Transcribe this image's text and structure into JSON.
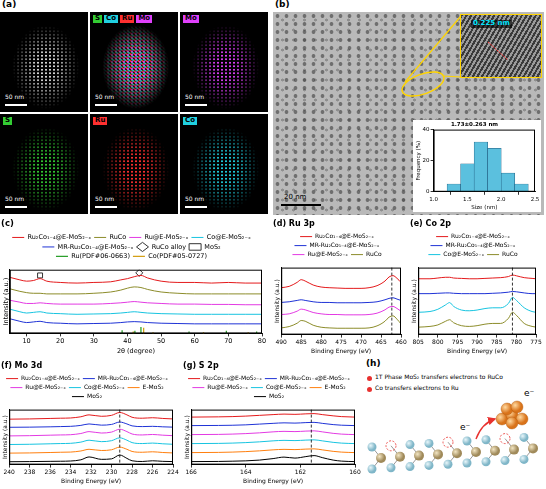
{
  "chart_data": [
    {
      "type": "line",
      "panel_label": "(c)",
      "x_label": "2θ (degree)",
      "y_label": "Intensity (a.u.)",
      "x": [
        5,
        8,
        10,
        12,
        14,
        16,
        20,
        25,
        30,
        35,
        38,
        40,
        42,
        44,
        46,
        50,
        55,
        60,
        65,
        70,
        75,
        80
      ],
      "series": [
        {
          "name": "Ru₂Co₁₋₄@E-MoS₂₋ₓ",
          "color": "#e41a1c",
          "values": [
            88,
            84,
            82,
            83,
            86,
            82,
            80,
            79,
            80,
            81,
            84,
            86,
            89,
            91,
            87,
            82,
            80,
            80,
            79,
            80,
            79,
            79
          ]
        },
        {
          "name": "RuCo",
          "color": "#8c8c2a",
          "values": [
            70,
            66,
            64,
            63,
            63,
            62,
            62,
            62,
            63,
            65,
            68,
            71,
            73,
            72,
            69,
            65,
            63,
            62,
            62,
            62,
            62,
            62
          ]
        },
        {
          "name": "Ru@E-MoS₂₋ₓ",
          "color": "#e33ae3",
          "values": [
            52,
            49,
            47,
            47,
            48,
            47,
            46,
            46,
            46,
            47,
            48,
            49,
            50,
            49,
            48,
            47,
            46,
            46,
            45.5,
            45.5,
            45,
            45
          ]
        },
        {
          "name": "Co@E-MoS₂₋ₓ",
          "color": "#17c4e0",
          "values": [
            38,
            34,
            32,
            33,
            34,
            32,
            31,
            30,
            30.5,
            31,
            32,
            33,
            34,
            33,
            32,
            31,
            30.5,
            30,
            30,
            30,
            30,
            30
          ]
        },
        {
          "name": "MR-Ru₂Co₁₋₄@E-MoS₂₋ₓ",
          "color": "#1f33d6",
          "values": [
            23,
            19,
            17,
            18,
            19,
            17,
            16,
            15,
            15.5,
            16,
            17,
            18,
            18.5,
            18,
            17,
            16,
            15.5,
            15,
            15,
            15,
            15,
            15
          ]
        }
      ],
      "markers": [
        {
          "name": "RuCo alloy",
          "marker": "diamond",
          "color": "#333333",
          "x": [
            43.5
          ],
          "values": [
            95
          ]
        },
        {
          "name": "MoS₂",
          "marker": "square",
          "color": "#333333",
          "x": [
            14
          ],
          "values": [
            91
          ]
        }
      ],
      "references": [
        {
          "name": "Ru(PDF#06-0663)",
          "color": "#2ca02c",
          "x": [
            38.4,
            42.2,
            44.0,
            58.3,
            69.4,
            78.4
          ],
          "values": [
            5,
            4,
            10,
            3,
            4,
            3
          ]
        },
        {
          "name": "Co(PDF#05-0727)",
          "color": "#d4a017",
          "x": [
            41.7,
            44.8,
            47.6,
            62.6,
            75.9
          ],
          "values": [
            3,
            9,
            2,
            2,
            2
          ]
        }
      ],
      "xlim": [
        5,
        80
      ],
      "xticks": [
        10,
        20,
        30,
        40,
        50,
        60,
        70,
        80
      ],
      "ylim": [
        0,
        100
      ],
      "legend": "top",
      "grid": false,
      "tick_labels": "x"
    },
    {
      "type": "line",
      "panel_label": "(d)",
      "title": "Ru 3p",
      "x_label": "Binding Energy (eV)",
      "y_label": "Intensity (a.u.)",
      "x": [
        490,
        488,
        486,
        485,
        484,
        482,
        480,
        478,
        476,
        474,
        472,
        470,
        468,
        466,
        464,
        463,
        462,
        461,
        460
      ],
      "series": [
        {
          "name": "Ru₂Co₁₋₄@E-MoS₂₋ₓ",
          "color": "#e41a1c",
          "values": [
            70,
            72,
            78,
            82,
            80,
            74,
            71,
            70,
            69.5,
            69,
            69,
            69,
            70,
            73,
            80,
            86,
            88,
            84,
            78
          ]
        },
        {
          "name": "MR-Ru₂Co₁₋₄@E-MoS₂₋ₓ",
          "color": "#1f33d6",
          "values": [
            48,
            49,
            51,
            52,
            51,
            49,
            48,
            48,
            47.5,
            47.5,
            47.5,
            47.5,
            48,
            49,
            52,
            54,
            55,
            53,
            51
          ]
        },
        {
          "name": "Ru@E-MoS₂₋ₓ",
          "color": "#e33ae3",
          "values": [
            30,
            31,
            35,
            38,
            37,
            33,
            31,
            30,
            30,
            29.5,
            29.5,
            29.5,
            30,
            32,
            37,
            41,
            42,
            39,
            35
          ]
        },
        {
          "name": "RuCo",
          "color": "#8c8c2a",
          "values": [
            10,
            12,
            17,
            21,
            20,
            14,
            11,
            10,
            9.5,
            9.5,
            9.5,
            9.5,
            10,
            13,
            20,
            26,
            28,
            23,
            16
          ]
        }
      ],
      "reference_x": [
        462.3
      ],
      "xlim": [
        490,
        460
      ],
      "xticks": [
        490,
        485,
        480,
        475,
        470,
        465,
        460
      ],
      "ylim": [
        0,
        100
      ],
      "legend": "top",
      "grid": false,
      "tick_labels": "x"
    },
    {
      "type": "line",
      "panel_label": "(e)",
      "title": "Co 2p",
      "x_label": "Binding Energy (eV)",
      "y_label": "Intensity (a.u.)",
      "x": [
        805,
        802,
        800,
        798,
        797,
        796,
        794,
        792,
        790,
        788,
        786,
        784,
        782,
        781,
        780,
        778,
        776,
        775
      ],
      "series": [
        {
          "name": "Ru₂Co₁₋₄@E-MoS₂₋ₓ",
          "color": "#e41a1c",
          "values": [
            75,
            75,
            76,
            77,
            77,
            76,
            75.5,
            75,
            75,
            75.5,
            76,
            76.5,
            78,
            80,
            79,
            76.5,
            75.5,
            75
          ]
        },
        {
          "name": "MR-Ru₂Co₁₋₄@E-MoS₂₋ₓ",
          "color": "#1f33d6",
          "values": [
            55,
            55,
            55.5,
            56,
            56,
            55.5,
            55,
            55,
            55,
            55,
            55.5,
            56,
            57,
            58,
            57.5,
            56,
            55,
            55
          ]
        },
        {
          "name": "Co@E-MoS₂₋ₓ",
          "color": "#17c4e0",
          "values": [
            30,
            31,
            34,
            40,
            43,
            38,
            33,
            32,
            33,
            35,
            36,
            36,
            42,
            50,
            46,
            36,
            31,
            30
          ]
        },
        {
          "name": "RuCo",
          "color": "#8c8c2a",
          "values": [
            10,
            11,
            13,
            18,
            20,
            16,
            12,
            11,
            12,
            14,
            15,
            15,
            22,
            30,
            26,
            15,
            11,
            10
          ]
        }
      ],
      "reference_x": [
        781
      ],
      "xlim": [
        805,
        775
      ],
      "xticks": [
        805,
        800,
        795,
        790,
        785,
        780,
        775
      ],
      "ylim": [
        0,
        90
      ],
      "legend": "top",
      "grid": false,
      "tick_labels": "x"
    },
    {
      "type": "line",
      "panel_label": "(f)",
      "title": "Mo 3d",
      "x_label": "Binding Energy (eV)",
      "y_label": "Intensity (a.u.)",
      "x": [
        240,
        238,
        236,
        235,
        234,
        233,
        232.2,
        231,
        230,
        229.2,
        228.5,
        228,
        227,
        226,
        225,
        224
      ],
      "series": [
        {
          "name": "Ru₂Co₁₋₄@E-MoS₂₋ₓ",
          "color": "#e41a1c",
          "values": [
            95,
            95.5,
            96.5,
            97,
            97.5,
            100,
            104,
            101,
            103,
            109,
            104,
            99,
            97,
            98,
            96.5,
            95.5
          ]
        },
        {
          "name": "MR-Ru₂Co₁₋₄@E-MoS₂₋ₓ",
          "color": "#1f33d6",
          "values": [
            78,
            78.3,
            79,
            79.5,
            80,
            82,
            85,
            82.5,
            84,
            89,
            85,
            81,
            79.5,
            80,
            79,
            78.3
          ]
        },
        {
          "name": "Ru@E-MoS₂₋ₓ",
          "color": "#e33ae3",
          "values": [
            60,
            60.5,
            61.5,
            62,
            62.5,
            65,
            69,
            66,
            68,
            74,
            69,
            64,
            62,
            63,
            61.5,
            60.5
          ]
        },
        {
          "name": "Co@E-MoS₂₋ₓ",
          "color": "#17c4e0",
          "values": [
            42,
            42.5,
            43.5,
            44,
            44.5,
            47,
            51,
            48,
            50,
            56,
            51,
            46,
            44,
            45,
            43.5,
            42.5
          ]
        },
        {
          "name": "E-MoS₂",
          "color": "#ff7f0e",
          "values": [
            24,
            24.4,
            25.3,
            25.8,
            26.2,
            28.5,
            32,
            29.5,
            31,
            36.5,
            32,
            27.5,
            25.8,
            26.8,
            25.3,
            24.4
          ]
        },
        {
          "name": "MoS₂",
          "color": "#000000",
          "values": [
            6,
            6.3,
            6.8,
            7,
            7.5,
            10,
            16,
            11,
            12,
            20,
            13,
            8,
            6.5,
            8,
            6.8,
            6.3
          ]
        }
      ],
      "reference_x": [
        229.2
      ],
      "xlim": [
        240,
        224
      ],
      "xticks": [
        240,
        238,
        236,
        234,
        232,
        230,
        228,
        226,
        224
      ],
      "ylim": [
        0,
        115
      ],
      "legend": "top",
      "grid": false,
      "tick_labels": "x"
    },
    {
      "type": "line",
      "panel_label": "(g)",
      "title": "S 2p",
      "x_label": "Binding Energy (eV)",
      "y_label": "Intensity (a.u.)",
      "x": [
        166,
        165,
        164.5,
        164,
        163.5,
        163,
        162.6,
        162.2,
        161.8,
        161.5,
        161.2,
        160.8,
        160.5,
        160
      ],
      "series": [
        {
          "name": "Ru₂Co₁₋₄@E-MoS₂₋ₓ",
          "color": "#e41a1c",
          "values": [
            95,
            95.5,
            96,
            97,
            98.5,
            100,
            101,
            100.5,
            101.5,
            102,
            100,
            97.5,
            96,
            95
          ]
        },
        {
          "name": "MR-Ru₂Co₁₋₄@E-MoS₂₋ₓ",
          "color": "#1f33d6",
          "values": [
            78,
            78.3,
            78.7,
            79.5,
            81,
            82.5,
            83.5,
            83,
            84,
            84.5,
            82.5,
            80,
            78.8,
            78
          ]
        },
        {
          "name": "Ru@E-MoS₂₋ₓ",
          "color": "#e33ae3",
          "values": [
            60,
            60.4,
            61,
            62,
            63.5,
            65.5,
            66.5,
            66,
            67,
            67.5,
            65.5,
            62.5,
            61,
            60
          ]
        },
        {
          "name": "Co@E-MoS₂₋ₓ",
          "color": "#17c4e0",
          "values": [
            42,
            42.4,
            43,
            44,
            45.5,
            47.5,
            48.5,
            48,
            49,
            49.5,
            47.5,
            44.5,
            43,
            42
          ]
        },
        {
          "name": "E-MoS₂",
          "color": "#ff7f0e",
          "values": [
            24,
            24.4,
            25,
            26,
            27.5,
            29.5,
            30.5,
            30,
            31,
            31.5,
            29.5,
            26.5,
            25,
            24
          ]
        },
        {
          "name": "MoS₂",
          "color": "#000000",
          "values": [
            6,
            6.3,
            6.8,
            7.5,
            9,
            12,
            15,
            13,
            16,
            18,
            14,
            9,
            7,
            6
          ]
        }
      ],
      "reference_x": [
        161.6
      ],
      "xlim": [
        166,
        160
      ],
      "xticks": [
        166,
        164,
        162,
        160
      ],
      "ylim": [
        0,
        110
      ],
      "legend": "top",
      "grid": false,
      "tick_labels": "x"
    },
    {
      "type": "histogram",
      "title": "1.73±0.263 nm",
      "x_label": "Size (nm)",
      "y_label": "Frequency (%)",
      "bins": [
        1.2,
        1.4,
        1.6,
        1.8,
        2.0,
        2.2,
        2.4
      ],
      "values": [
        5,
        18,
        32,
        28,
        12,
        5
      ],
      "color": "#5bc0de",
      "xlim": [
        1,
        2.5
      ],
      "xticks": [
        {
          "value": 1,
          "label": "1.0"
        },
        1.5,
        {
          "value": 2,
          "label": "2.0"
        },
        2.5
      ],
      "ylim": [
        0,
        40
      ],
      "yticks": [
        0,
        20,
        40
      ],
      "grid": false
    }
  ],
  "images": {
    "a": {
      "panel_label": "(a)",
      "tiles": [
        {
          "elements": [],
          "scale_bar": "50 nm"
        },
        {
          "elements": [
            "S",
            "Co",
            "Ru",
            "Mo"
          ],
          "scale_bar": "50 nm"
        },
        {
          "elements": [
            "Mo"
          ],
          "scale_bar": "50 nm"
        },
        {
          "elements": [
            "S"
          ],
          "scale_bar": "50 nm"
        },
        {
          "elements": [
            "Ru"
          ],
          "scale_bar": "50 nm"
        },
        {
          "elements": [
            "Co"
          ],
          "scale_bar": "50 nm"
        }
      ],
      "element_colors": {
        "Mo": "#e040fb",
        "S": "#33cc33",
        "Ru": "#ff3030",
        "Co": "#20d0e0"
      }
    },
    "b": {
      "panel_label": "(b)",
      "scale_bar": "20 nm",
      "lattice_spacing": "0.225 nm"
    },
    "h": {
      "panel_label": "(h)",
      "notes": [
        "1T Phase MoS₂ transfers electrons to RuCo",
        "Co transfers electrons to Ru"
      ],
      "note_color": "#e8312f",
      "electron_labels": [
        "e⁻",
        "e⁻"
      ]
    }
  }
}
